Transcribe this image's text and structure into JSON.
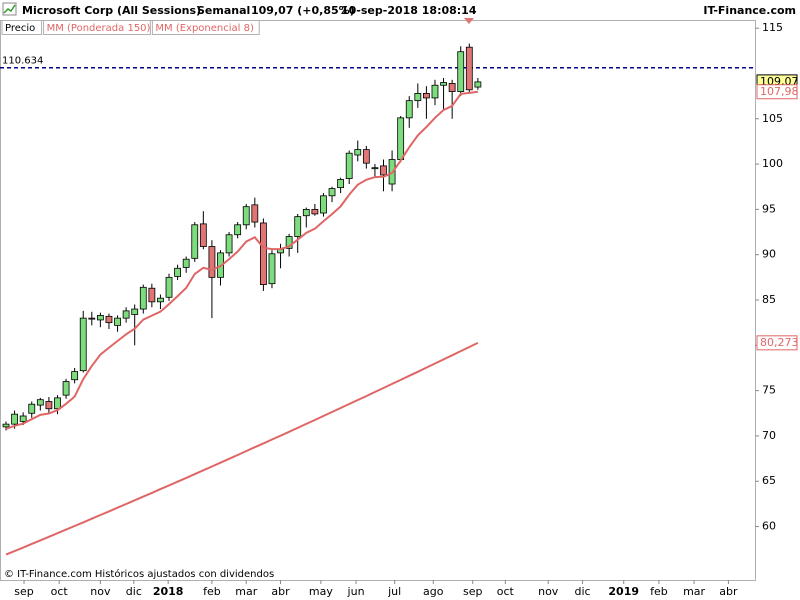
{
  "chart_data": {
    "type": "candlestick",
    "title": "Microsoft Corp (All Sessions)",
    "interval": "Semanal",
    "change": "109,07 (+0,85%)",
    "date": "10-sep-2018 18:08:14",
    "brand": "IT-Finance.com",
    "footer": "© IT-Finance.com  Históricos ajustados con dividendos",
    "xlim": [
      -0.7,
      87.3
    ],
    "xticks": [
      {
        "value": 2.1,
        "label": "sep"
      },
      {
        "value": 6.2,
        "label": "oct"
      },
      {
        "value": 11.0,
        "label": "nov"
      },
      {
        "value": 14.9,
        "label": "dic"
      },
      {
        "value": 18.9,
        "label": "2018"
      },
      {
        "value": 24.0,
        "label": "feb"
      },
      {
        "value": 28.0,
        "label": "mar"
      },
      {
        "value": 32.0,
        "label": "abr"
      },
      {
        "value": 36.7,
        "label": "may"
      },
      {
        "value": 40.8,
        "label": "jun"
      },
      {
        "value": 45.3,
        "label": "jul"
      },
      {
        "value": 49.8,
        "label": "ago"
      },
      {
        "value": 54.4,
        "label": "sep"
      },
      {
        "value": 58.2,
        "label": "oct"
      },
      {
        "value": 63.2,
        "label": "nov"
      },
      {
        "value": 67.2,
        "label": "dic"
      },
      {
        "value": 72.0,
        "label": "2019"
      },
      {
        "value": 76.1,
        "label": "feb"
      },
      {
        "value": 80.2,
        "label": "mar"
      },
      {
        "value": 84.2,
        "label": "abr"
      }
    ],
    "ylim": [
      54.1,
      115.9
    ],
    "yticks": [
      60,
      65,
      70,
      75,
      80,
      85,
      90,
      95,
      100,
      105,
      115
    ],
    "reference_line": {
      "value": 110.634,
      "label": "110.634",
      "color": "#000080"
    },
    "series": [
      {
        "name": "Precio",
        "color_up": "#7ddc7d",
        "color_down": "#e07575",
        "last_label": "109,07",
        "last_value": 109.07,
        "x": [
          0,
          1,
          2,
          3,
          4,
          5,
          6,
          7,
          8,
          9,
          10,
          11,
          12,
          13,
          14,
          15,
          16,
          17,
          18,
          19,
          20,
          21,
          22,
          23,
          24,
          25,
          26,
          27,
          28,
          29,
          30,
          31,
          32,
          33,
          34,
          35,
          36,
          37,
          38,
          39,
          40,
          41,
          42,
          43,
          44,
          45,
          46,
          47,
          48,
          49,
          50,
          51,
          52,
          53,
          54,
          55
        ],
        "open": [
          71.0,
          71.3,
          71.6,
          72.5,
          73.4,
          73.8,
          73.0,
          74.5,
          76.2,
          77.2,
          83.0,
          82.8,
          83.2,
          82.2,
          83.0,
          83.4,
          84.0,
          86.3,
          84.8,
          85.3,
          87.6,
          88.6,
          89.6,
          93.4,
          90.9,
          87.5,
          90.2,
          92.2,
          93.3,
          95.5,
          93.5,
          86.8,
          90.2,
          90.7,
          92.0,
          94.3,
          95.0,
          94.6,
          96.5,
          97.4,
          98.4,
          101.0,
          101.6,
          99.5,
          99.8,
          97.8,
          100.5,
          105.1,
          107.0,
          107.8,
          107.3,
          108.7,
          108.9,
          108.0,
          112.9,
          108.5
        ],
        "high": [
          71.6,
          72.8,
          72.6,
          73.8,
          74.2,
          74.3,
          74.5,
          76.3,
          77.5,
          83.8,
          83.7,
          83.6,
          83.5,
          83.3,
          84.2,
          84.5,
          86.7,
          86.8,
          85.6,
          87.9,
          88.9,
          89.8,
          93.6,
          94.8,
          91.6,
          90.5,
          92.5,
          93.6,
          95.6,
          96.3,
          94.0,
          90.5,
          91.2,
          92.3,
          94.5,
          95.2,
          95.6,
          96.8,
          97.5,
          98.5,
          101.5,
          102.6,
          102.0,
          100.0,
          100.5,
          101.5,
          105.3,
          107.5,
          108.9,
          108.6,
          109.3,
          109.5,
          109.3,
          113.0,
          113.3,
          109.5
        ],
        "low": [
          70.6,
          70.8,
          71.2,
          72.0,
          72.8,
          72.5,
          72.4,
          74.1,
          75.8,
          77.0,
          82.2,
          82.0,
          81.8,
          81.5,
          82.5,
          80.0,
          83.5,
          84.2,
          84.0,
          84.9,
          87.2,
          88.0,
          89.2,
          90.6,
          83.0,
          86.6,
          89.8,
          91.8,
          92.8,
          93.0,
          86.0,
          86.3,
          88.5,
          89.8,
          90.2,
          93.0,
          94.3,
          94.2,
          95.8,
          96.8,
          97.8,
          100.3,
          99.5,
          98.5,
          97.0,
          97.0,
          100.2,
          104.0,
          106.2,
          105.0,
          106.5,
          106.0,
          105.0,
          107.5,
          107.8,
          108.2
        ],
        "close": [
          71.3,
          72.4,
          72.2,
          73.5,
          74.0,
          73.0,
          74.2,
          76.0,
          77.1,
          83.0,
          82.9,
          83.3,
          82.5,
          83.0,
          83.8,
          84.0,
          86.4,
          84.8,
          85.2,
          87.5,
          88.5,
          89.5,
          93.3,
          90.9,
          87.5,
          90.2,
          92.2,
          93.3,
          95.3,
          93.6,
          86.7,
          90.1,
          90.6,
          92.0,
          94.2,
          95.0,
          94.5,
          96.5,
          97.3,
          98.3,
          101.2,
          101.6,
          100.1,
          99.6,
          98.8,
          100.5,
          105.1,
          107.0,
          107.8,
          107.3,
          108.7,
          109.0,
          108.0,
          112.4,
          108.2,
          109.07
        ]
      },
      {
        "name": "MM (Ponderada 150)",
        "color": "#e06666",
        "last_label": "80,273",
        "last_value": 80.273,
        "values": [
          56.9,
          57.29,
          57.68,
          58.08,
          58.47,
          58.87,
          59.26,
          59.66,
          60.06,
          60.46,
          60.86,
          61.27,
          61.67,
          62.08,
          62.49,
          62.89,
          63.3,
          63.71,
          64.13,
          64.54,
          64.95,
          65.37,
          65.79,
          66.21,
          66.63,
          67.05,
          67.47,
          67.89,
          68.32,
          68.75,
          69.17,
          69.6,
          70.03,
          70.46,
          70.89,
          71.33,
          71.76,
          72.2,
          72.64,
          73.08,
          73.52,
          73.96,
          74.4,
          74.85,
          75.29,
          75.74,
          76.18,
          76.63,
          77.08,
          77.54,
          77.99,
          78.44,
          78.9,
          79.36,
          79.81,
          80.27
        ]
      },
      {
        "name": "MM (Exponencial 8)",
        "color": "#e06666",
        "last_label": "107,98",
        "last_value": 107.98,
        "values": [
          70.76,
          71.12,
          71.36,
          71.84,
          72.32,
          72.47,
          72.85,
          73.55,
          74.34,
          76.26,
          77.73,
          78.97,
          79.75,
          80.47,
          81.21,
          81.83,
          82.84,
          83.28,
          83.71,
          84.55,
          85.43,
          86.33,
          87.88,
          88.55,
          88.32,
          88.74,
          89.51,
          90.35,
          91.45,
          91.93,
          90.77,
          90.62,
          90.62,
          90.93,
          91.66,
          92.4,
          92.87,
          93.68,
          94.48,
          95.33,
          96.63,
          97.73,
          98.26,
          98.56,
          98.61,
          99.03,
          100.38,
          101.85,
          103.17,
          104.09,
          105.11,
          105.97,
          106.42,
          107.75,
          107.85,
          107.98
        ]
      }
    ]
  }
}
